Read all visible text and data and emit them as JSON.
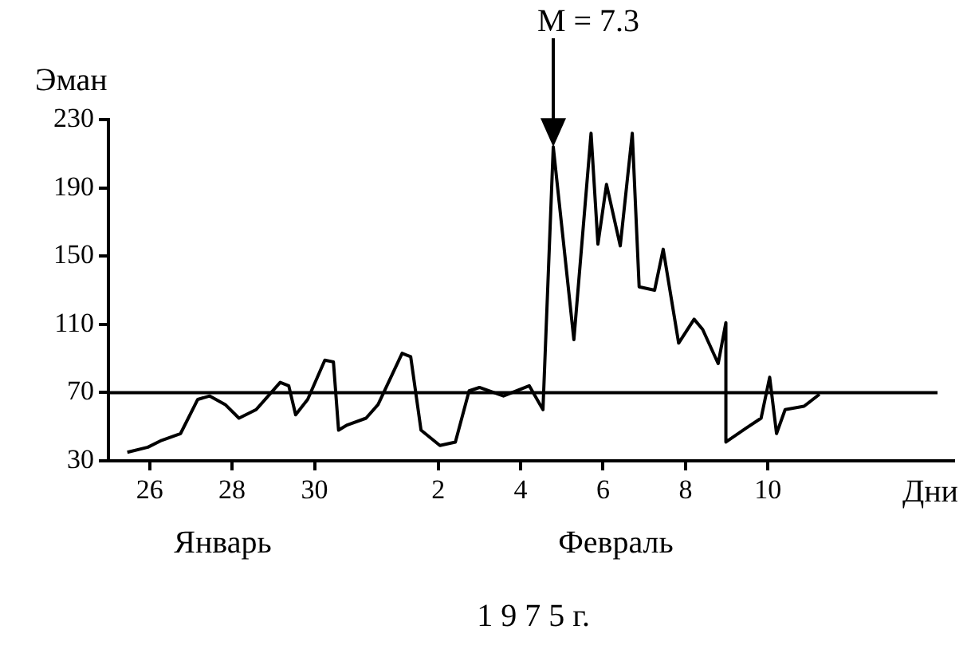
{
  "chart_data": {
    "type": "line",
    "ylabel": "Эман",
    "xlabel": "Дни",
    "x": [
      "--01-25T11:00",
      "--01-25T23:00",
      "--01-26T07:00",
      "--01-26T18:00",
      "--01-27T04:00",
      "--01-27T11:00",
      "--01-27T20:00",
      "--01-28T04:00",
      "--01-28T14:00",
      "--01-29T04:00",
      "--01-29T09:00",
      "--01-29T13:00",
      "--01-29T20:00",
      "--01-30T06:00",
      "--01-30T11:00",
      "--01-30T14:00",
      "--01-30T19:00",
      "--01-31T06:00",
      "--01-31T13:00",
      "--02-01T03:00",
      "--02-01T08:00",
      "--02-01T14:00",
      "--02-02T01:00",
      "--02-02T10:00",
      "--02-02T18:00",
      "--02-03T00:00",
      "--02-03T14:00",
      "--02-04T05:00",
      "--02-04T13:00",
      "--02-04T19:00",
      "--02-05T07:00",
      "--02-05T17:00",
      "--02-05T21:00",
      "--02-06T02:00",
      "--02-06T10:00",
      "--02-06T17:00",
      "--02-06T21:00",
      "--02-07T06:00",
      "--02-07T11:00",
      "--02-07T20:00",
      "--02-08T05:00",
      "--02-08T10:00",
      "--02-08T19:00",
      "--02-08T23:30",
      "--02-08T23:30",
      "--02-09T11:00",
      "--02-09T20:00",
      "--02-10T01:00",
      "--02-10T05:00",
      "--02-10T10:00",
      "--02-10T21:00",
      "--02-11T06:00"
    ],
    "series": [
      {
        "color": "#000000",
        "values": [
          35,
          38,
          42,
          46,
          66,
          68,
          63,
          55,
          60,
          76,
          74,
          57,
          66,
          89,
          88,
          48,
          51,
          55,
          63,
          93,
          91,
          48,
          39,
          41,
          71,
          73,
          68,
          74,
          60,
          214,
          101,
          222,
          157,
          192,
          156,
          222,
          132,
          130,
          154,
          99,
          113,
          107,
          87,
          111,
          41,
          49,
          55,
          79,
          46,
          60,
          62,
          69
        ]
      }
    ],
    "xlim": [
      "--01-25T00:00",
      "--02-14T12:00"
    ],
    "xticks": [
      {
        "value": "--01-26",
        "label": "26"
      },
      {
        "value": "--01-28",
        "label": "28"
      },
      {
        "value": "--01-30",
        "label": "30"
      },
      {
        "value": "--02-02",
        "label": "2"
      },
      {
        "value": "--02-04",
        "label": "4"
      },
      {
        "value": "--02-06",
        "label": "6"
      },
      {
        "value": "--02-08",
        "label": "8"
      },
      {
        "value": "--02-10",
        "label": "10"
      }
    ],
    "ylim": [
      30,
      230
    ],
    "yticks": [
      30,
      70,
      110,
      150,
      190,
      230
    ],
    "ref_lines": [
      {
        "axis": "y",
        "value": 70,
        "color": "#000000"
      }
    ],
    "annotations": [
      "M = 7.3",
      "Январь",
      "Февраль",
      "1 9 7 5 г."
    ],
    "grid": false,
    "legend": false,
    "marker": "none",
    "line_style": "solid"
  }
}
